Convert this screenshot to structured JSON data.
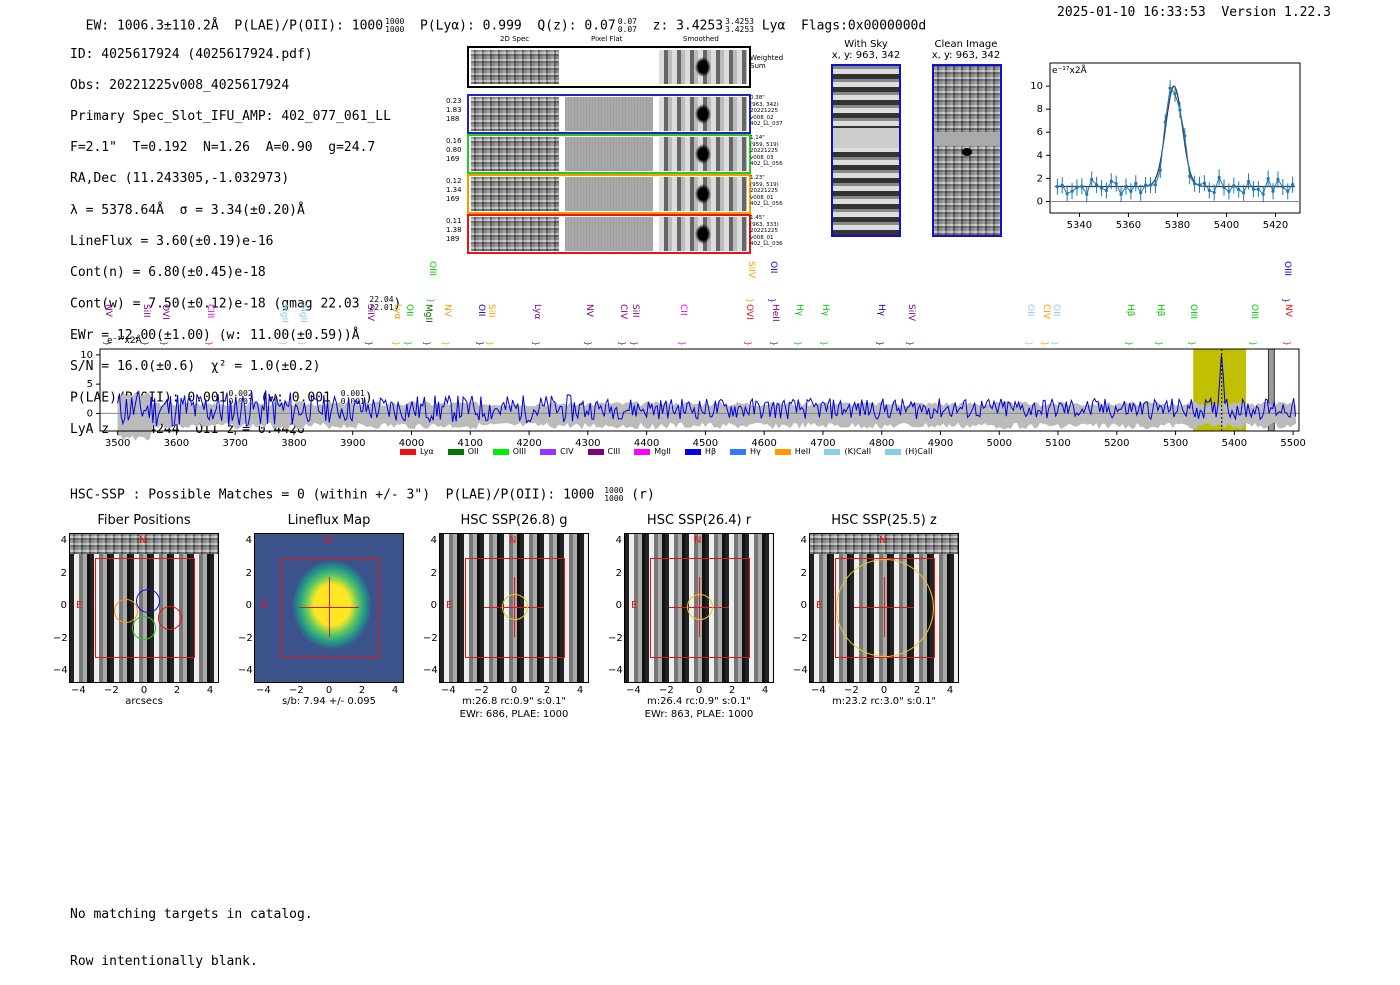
{
  "header": {
    "ew": "EW: 1006.3±110.2Å",
    "plae": "P(LAE)/P(OII): 1000",
    "plae_hi": "1000",
    "plae_lo": "1000",
    "plya": "P(Lyα): 0.999",
    "qz": "Q(z): 0.07",
    "qz_hi": "0.07",
    "qz_lo": "0.07",
    "z": "z: 3.4253",
    "z_hi": "3.4253",
    "z_lo": "3.4253",
    "line": "Lyα",
    "flags": "Flags:0x0000000d",
    "datetime": "2025-01-10 16:33:53",
    "version": "Version 1.22.3"
  },
  "info": {
    "l1": "ID: 4025617924 (4025617924.pdf)",
    "l2": "Obs: 20221225v008_4025617924",
    "l3": "Primary Spec_Slot_IFU_AMP: 402_077_061_LL",
    "l4": "F=2.1\"  T=0.192  N=1.26  A=0.90  g=24.7",
    "l5": "RA,Dec (11.243305,-1.032973)",
    "l6": "λ = 5378.64Å  σ = 3.34(±0.20)Å",
    "l7": "LineFlux = 3.60(±0.19)e-16",
    "l8": "Cont(n) = 6.80(±0.45)e-18",
    "l9": "Cont(w) = 7.50(±0.12)e-18 (gmag 22.03",
    "l9_hi": "22.04",
    "l9_lo": "22.01",
    "l9_end": ")",
    "l10": "EWr = 12.00(±1.00) (w: 11.00(±0.59))Å",
    "l11": "S/N = 16.0(±0.6)  χ² = 1.0(±0.2)",
    "l12": "P(LAE)/P(OII): 0.001",
    "l12_hi": "0.002",
    "l12_lo": "0.001",
    "l12_mid": " (w: 0.001",
    "l12_hi2": "0.001",
    "l12_lo2": "0.001",
    "l12_end": ")",
    "l13": "LyA z = 3.4244  OII z = 0.4428"
  },
  "cutouts": {
    "col1": "2D Spec",
    "col2": "Pixel Flat",
    "col3": "Smoothed",
    "weighted": "Weighted\nSum",
    "rows": [
      {
        "left": "0.23\n1.83\n188",
        "right": "0.38\"\n(963, 342)\n20221225\nv008_02\n402_LL_037",
        "color": "#2222cc"
      },
      {
        "left": "0.16\n0.80\n169",
        "right": "1.14\"\n(959, 519)\n20221225\nv008_03\n402_LL_056",
        "color": "#22cc22"
      },
      {
        "left": "0.12\n1.34\n169",
        "right": "1.23\"\n(959, 519)\n20221225\nv008_01\n402_LL_056",
        "color": "#ff9900"
      },
      {
        "left": "0.11\n1.38\n189",
        "right": "1.45\"\n(963, 333)\n20221225\nv008_01\n402_LL_036",
        "color": "#ee1111"
      }
    ]
  },
  "sky": {
    "with_title": "With Sky",
    "with_xy": "x, y: 963, 342",
    "clean_title": "Clean Image",
    "clean_xy": "x, y: 963, 342"
  },
  "zoom": {
    "unit": "e⁻¹⁷x2Å",
    "xticks": [
      "5340",
      "5360",
      "5380",
      "5400",
      "5420"
    ],
    "yticks": [
      "10",
      "8",
      "6",
      "4",
      "2",
      "0"
    ]
  },
  "spectrum": {
    "unit": "e⁻¹⁷x2Å",
    "xticks": [
      "3500",
      "3600",
      "3700",
      "3800",
      "3900",
      "4000",
      "4100",
      "4200",
      "4300",
      "4400",
      "4500",
      "4600",
      "4700",
      "4800",
      "4900",
      "5000",
      "5100",
      "5200",
      "5300",
      "5400",
      "5500"
    ],
    "yticks": [
      "10",
      "5",
      "0"
    ],
    "lines": [
      {
        "n": "NV",
        "c": "#800080",
        "x": 108,
        "h": 0
      },
      {
        "n": "SiII",
        "c": "#800080",
        "x": 146,
        "h": 0
      },
      {
        "n": "OVI",
        "c": "#800080",
        "x": 165,
        "h": 0
      },
      {
        "n": "CIII",
        "c": "#ee00ee",
        "x": 210,
        "h": 0
      },
      {
        "n": "MgII",
        "c": "#87ceeb",
        "x": 284,
        "h": 0
      },
      {
        "n": "MgII",
        "c": "#87ceeb",
        "x": 303,
        "h": 0
      },
      {
        "n": "SiIV",
        "c": "#800080",
        "x": 370,
        "h": 0
      },
      {
        "n": "Lyα",
        "c": "#ff9900",
        "x": 397,
        "h": 0
      },
      {
        "n": "OII",
        "c": "#00cc00",
        "x": 409,
        "h": 0
      },
      {
        "n": "MgII",
        "c": "#006600",
        "x": 428,
        "h": 0
      },
      {
        "n": "OIII",
        "c": "#00cc00",
        "x": 432,
        "h": 1
      },
      {
        "n": "NV",
        "c": "#ff9900",
        "x": 447,
        "h": 0
      },
      {
        "n": "OII",
        "c": "#0000cc",
        "x": 481,
        "h": 0
      },
      {
        "n": "SiII",
        "c": "#ff9900",
        "x": 491,
        "h": 0
      },
      {
        "n": "Lyα",
        "c": "#800080",
        "x": 537,
        "h": 0
      },
      {
        "n": "NV",
        "c": "#800080",
        "x": 589,
        "h": 0
      },
      {
        "n": "CIV",
        "c": "#800080",
        "x": 623,
        "h": 0
      },
      {
        "n": "SiII",
        "c": "#800080",
        "x": 635,
        "h": 0
      },
      {
        "n": "CII",
        "c": "#ee00ee",
        "x": 683,
        "h": 0
      },
      {
        "n": "SiIV",
        "c": "#ff9900",
        "x": 751,
        "h": 1
      },
      {
        "n": "OVI",
        "c": "#ee1111",
        "x": 749,
        "h": 0
      },
      {
        "n": "OII",
        "c": "#0000cc",
        "x": 773,
        "h": 1
      },
      {
        "n": "HeII",
        "c": "#800080",
        "x": 775,
        "h": 0
      },
      {
        "n": "Hγ",
        "c": "#00cc00",
        "x": 799,
        "h": 0
      },
      {
        "n": "Hγ",
        "c": "#00cc00",
        "x": 825,
        "h": 0
      },
      {
        "n": "Hγ",
        "c": "#0000cc",
        "x": 881,
        "h": 0
      },
      {
        "n": "SiIV",
        "c": "#800080",
        "x": 911,
        "h": 0
      },
      {
        "n": "OII",
        "c": "#87ceeb",
        "x": 1030,
        "h": 0
      },
      {
        "n": "CIV",
        "c": "#ff9900",
        "x": 1046,
        "h": 0
      },
      {
        "n": "OII",
        "c": "#87ceeb",
        "x": 1056,
        "h": 0
      },
      {
        "n": "Hβ",
        "c": "#00cc00",
        "x": 1130,
        "h": 0
      },
      {
        "n": "Hβ",
        "c": "#00cc00",
        "x": 1160,
        "h": 0
      },
      {
        "n": "OIII",
        "c": "#00cc00",
        "x": 1193,
        "h": 0
      },
      {
        "n": "OIII",
        "c": "#00cc00",
        "x": 1254,
        "h": 0
      },
      {
        "n": "OIII",
        "c": "#0000cc",
        "x": 1287,
        "h": 1
      },
      {
        "n": "NV",
        "c": "#ee1111",
        "x": 1288,
        "h": 0
      }
    ],
    "legend": [
      {
        "n": "Lyα",
        "c": "#ee1111"
      },
      {
        "n": "OII",
        "c": "#007700"
      },
      {
        "n": "OIII",
        "c": "#00ee00"
      },
      {
        "n": "CIV",
        "c": "#9933ff"
      },
      {
        "n": "CIII",
        "c": "#800080"
      },
      {
        "n": "MgII",
        "c": "#ff00ff"
      },
      {
        "n": "Hβ",
        "c": "#0000ee"
      },
      {
        "n": "Hγ",
        "c": "#3377ff"
      },
      {
        "n": "HeII",
        "c": "#ff9900"
      },
      {
        "n": "(K)CaII",
        "c": "#87ceeb"
      },
      {
        "n": "(H)CaII",
        "c": "#87ceeb"
      }
    ]
  },
  "hsc": {
    "text": "HSC-SSP : Possible Matches = 0 (within +/- 3\")  P(LAE)/P(OII): 1000",
    "hi": "1000",
    "lo": "1000",
    "end": " (r)"
  },
  "panels": [
    {
      "title": "Fiber Positions",
      "cap1": "arcsecs",
      "cap2": ""
    },
    {
      "title": "Lineflux Map",
      "cap1": "s/b: 7.94 +/- 0.095",
      "cap2": ""
    },
    {
      "title": "HSC SSP(26.8) g",
      "cap1": "m:26.8 rc:0.9\"  s:0.1\"",
      "cap2": "EWr: 686, PLAE: 1000"
    },
    {
      "title": "HSC SSP(26.4) r",
      "cap1": "m:26.4 rc:0.9\"  s:0.1\"",
      "cap2": "EWr: 863, PLAE: 1000"
    },
    {
      "title": "HSC SSP(25.5) z",
      "cap1": "m:23.2 rc:3.0\"  s:0.1\"",
      "cap2": ""
    }
  ],
  "panel_axes": {
    "xticks": [
      "−4",
      "−2",
      "0",
      "2",
      "4"
    ],
    "yticks": [
      "4",
      "2",
      "0",
      "−2",
      "−4"
    ],
    "n": "N",
    "e": "E"
  },
  "footer": {
    "l1": "No matching targets in catalog.",
    "l2": "Row intentionally blank."
  }
}
